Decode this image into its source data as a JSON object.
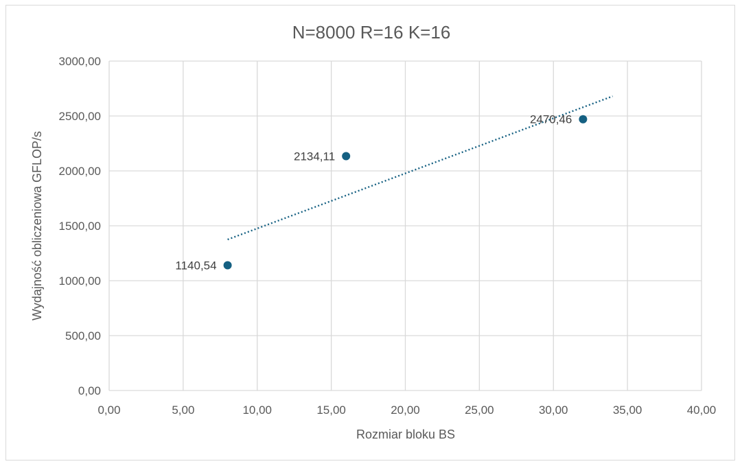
{
  "chart_data": {
    "type": "scatter",
    "title": "N=8000 R=16 K=16",
    "xlabel": "Rozmiar bloku BS",
    "ylabel": "Wydajność obliczeniowa GFLOP/s",
    "xlim": [
      0,
      40
    ],
    "ylim": [
      0,
      3000
    ],
    "x_ticks": [
      0,
      5,
      10,
      15,
      20,
      25,
      30,
      35,
      40
    ],
    "y_ticks": [
      0,
      500,
      1000,
      1500,
      2000,
      2500,
      3000
    ],
    "x_tick_labels": [
      "0,00",
      "5,00",
      "10,00",
      "15,00",
      "20,00",
      "25,00",
      "30,00",
      "35,00",
      "40,00"
    ],
    "y_tick_labels": [
      "0,00",
      "500,00",
      "1000,00",
      "1500,00",
      "2000,00",
      "2500,00",
      "3000,00"
    ],
    "grid": true,
    "legend": "none",
    "series": [
      {
        "x": [
          8,
          16,
          32
        ],
        "y": [
          1140.54,
          2134.11,
          2470.46
        ],
        "labels": [
          "1140,54",
          "2134,11",
          "2470,46"
        ],
        "color": "#156082"
      }
    ],
    "trendline": {
      "type": "linear",
      "style": "dotted",
      "color": "#156082",
      "x_range": [
        8,
        34
      ],
      "y_range": [
        1375,
        2680
      ]
    }
  }
}
